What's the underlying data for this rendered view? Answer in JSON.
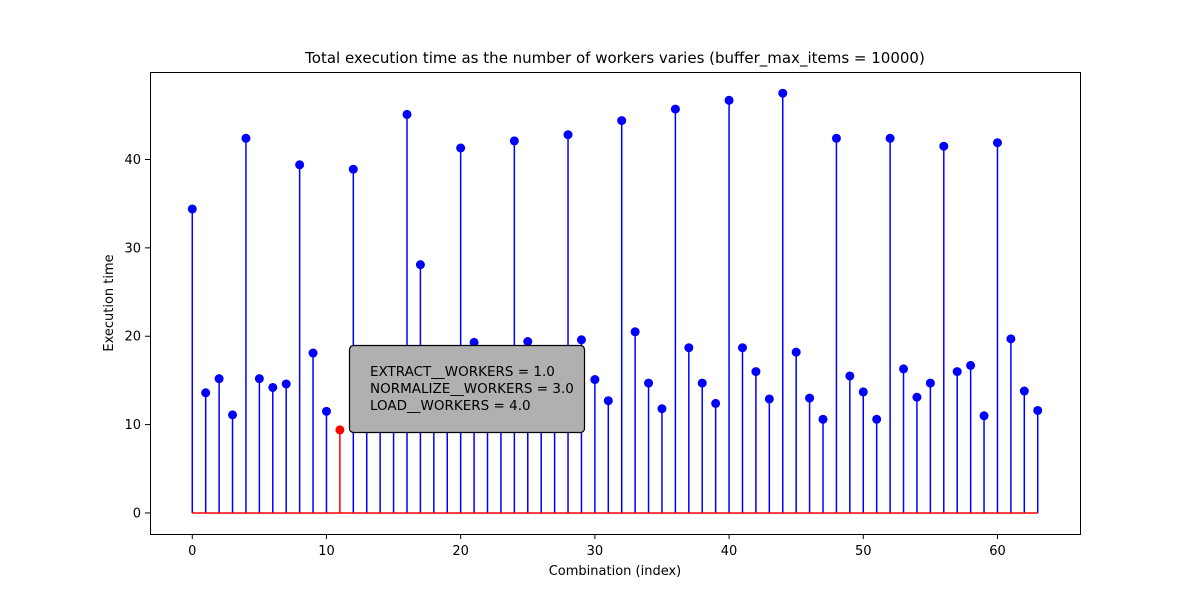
{
  "chart_data": {
    "type": "stem",
    "title": "Total execution time as the number of workers varies (buffer_max_items = 10000)",
    "xlabel": "Combination (index)",
    "ylabel": "Execution time",
    "xlim": [
      -3.15,
      66.15
    ],
    "ylim": [
      -2.38,
      49.9
    ],
    "xticks": [
      0,
      10,
      20,
      30,
      40,
      50,
      60
    ],
    "yticks": [
      0,
      10,
      20,
      30,
      40
    ],
    "grid": false,
    "series": [
      {
        "color": "#0000ff",
        "x": [
          0,
          1,
          2,
          3,
          4,
          5,
          6,
          7,
          8,
          9,
          10,
          11,
          12,
          13,
          14,
          15,
          16,
          17,
          18,
          19,
          20,
          21,
          22,
          23,
          24,
          25,
          26,
          27,
          28,
          29,
          30,
          31,
          32,
          33,
          34,
          35,
          36,
          37,
          38,
          39,
          40,
          41,
          42,
          43,
          44,
          45,
          46,
          47,
          48,
          49,
          50,
          51,
          52,
          53,
          54,
          55,
          56,
          57,
          58,
          59,
          60,
          61,
          62,
          63
        ],
        "values": [
          34.4,
          13.6,
          15.2,
          11.1,
          42.4,
          15.2,
          14.2,
          14.6,
          39.4,
          18.1,
          11.5,
          9.4,
          38.9,
          15.5,
          12.8,
          11.9,
          45.1,
          28.1,
          16.0,
          12.4,
          41.3,
          19.3,
          14.8,
          12.0,
          42.1,
          19.4,
          14.9,
          12.1,
          42.8,
          19.6,
          15.1,
          12.7,
          44.4,
          20.5,
          14.7,
          11.8,
          45.7,
          18.7,
          14.7,
          12.4,
          46.7,
          18.7,
          16.0,
          12.9,
          47.5,
          18.2,
          13.0,
          10.6,
          42.4,
          15.5,
          13.7,
          10.6,
          42.4,
          16.3,
          13.1,
          14.7,
          41.5,
          16.0,
          16.7,
          11.0,
          41.9,
          19.7,
          13.8,
          11.6
        ]
      }
    ],
    "highlight": {
      "index": 11,
      "value": 9.4,
      "color": "#ff0000"
    },
    "baseline": {
      "value": 0,
      "color": "#ff0000"
    },
    "annotation": {
      "lines": [
        "EXTRACT__WORKERS = 1.0",
        "NORMALIZE__WORKERS = 3.0",
        "LOAD__WORKERS = 4.0"
      ],
      "background": "#b0b0b0"
    }
  }
}
